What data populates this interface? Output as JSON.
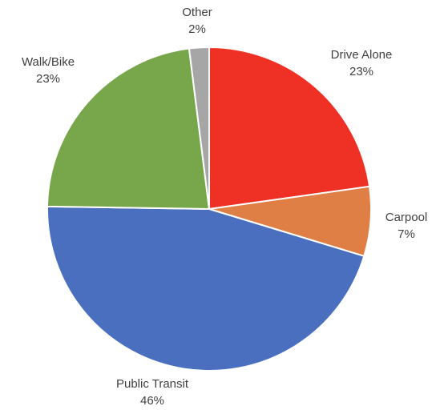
{
  "chart_data": {
    "type": "pie",
    "start_angle_deg": 0,
    "direction": "clockwise",
    "slices": [
      {
        "label": "Drive Alone",
        "value_label": "23%",
        "value": 23,
        "color": "#EE3124"
      },
      {
        "label": "Carpool",
        "value_label": "7%",
        "value": 7,
        "color": "#E07F45"
      },
      {
        "label": "Public Transit",
        "value_label": "46%",
        "value": 46,
        "color": "#4A6FBF"
      },
      {
        "label": "Walk/Bike",
        "value_label": "23%",
        "value": 23,
        "color": "#77A74A"
      },
      {
        "label": "Other",
        "value_label": "2%",
        "value": 2,
        "color": "#A6A6A6"
      }
    ]
  }
}
